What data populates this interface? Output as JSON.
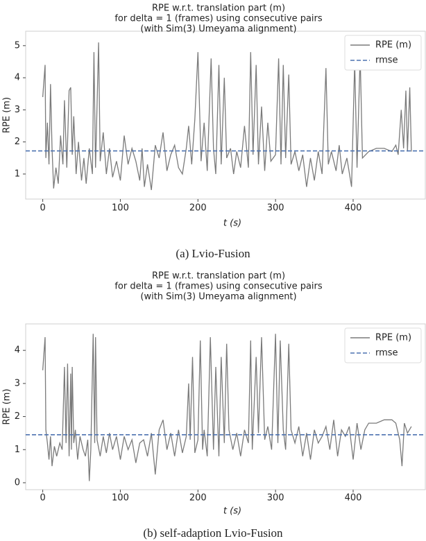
{
  "chart_data": [
    {
      "type": "line",
      "title": [
        "RPE w.r.t. translation part (m)",
        "for delta = 1 (frames) using consecutive pairs",
        "(with Sim(3) Umeyama alignment)"
      ],
      "xlabel": "t (s)",
      "ylabel": "RPE (m)",
      "caption": "(a) Lvio-Fusion",
      "xlim": [
        -22,
        493
      ],
      "ylim": [
        0.22,
        5.45
      ],
      "xticks": [
        0,
        100,
        200,
        300,
        400
      ],
      "yticks": [
        1,
        2,
        3,
        4,
        5
      ],
      "legend": "upper right",
      "series": [
        {
          "name": "RPE (m)",
          "color": "#7a7a7a",
          "dash": false,
          "x": [
            0,
            3,
            4,
            6,
            8,
            10,
            12,
            14,
            17,
            20,
            23,
            26,
            28,
            31,
            34,
            36,
            38,
            40,
            43,
            46,
            50,
            53,
            56,
            60,
            64,
            66,
            68,
            72,
            74,
            78,
            82,
            86,
            90,
            95,
            100,
            105,
            110,
            115,
            120,
            125,
            128,
            131,
            135,
            140,
            145,
            150,
            155,
            160,
            165,
            170,
            175,
            180,
            185,
            188,
            192,
            196,
            200,
            204,
            208,
            212,
            217,
            220,
            223,
            227,
            230,
            234,
            237,
            242,
            246,
            250,
            255,
            260,
            265,
            268,
            271,
            275,
            278,
            282,
            286,
            290,
            294,
            300,
            304,
            307,
            310,
            313,
            317,
            320,
            325,
            330,
            335,
            340,
            345,
            350,
            355,
            360,
            365,
            368,
            372,
            378,
            382,
            386,
            392,
            398,
            402,
            405,
            409,
            412,
            420,
            430,
            440,
            450,
            455,
            458,
            462,
            465,
            468,
            470,
            473,
            475
          ],
          "values": [
            3.4,
            4.4,
            1.5,
            2.6,
            1.3,
            3.8,
            1.8,
            0.55,
            1.2,
            0.7,
            2.2,
            1.3,
            3.3,
            1.2,
            3.6,
            3.7,
            1.6,
            2.8,
            1.0,
            2.0,
            0.8,
            1.5,
            0.7,
            1.8,
            1.0,
            4.8,
            1.2,
            5.1,
            1.4,
            2.3,
            1.0,
            1.8,
            0.9,
            1.4,
            0.8,
            2.2,
            1.3,
            1.8,
            1.4,
            0.8,
            1.8,
            0.6,
            1.3,
            0.5,
            1.9,
            1.5,
            2.3,
            1.1,
            1.6,
            1.9,
            1.2,
            1.0,
            1.8,
            2.5,
            1.3,
            2.7,
            4.8,
            1.4,
            2.6,
            1.1,
            4.6,
            1.8,
            1.0,
            4.4,
            1.3,
            4.0,
            1.5,
            1.8,
            1.0,
            1.7,
            1.2,
            2.5,
            1.2,
            4.8,
            1.6,
            4.4,
            1.3,
            3.1,
            1.1,
            2.6,
            1.4,
            1.6,
            4.6,
            1.3,
            4.4,
            1.5,
            4.1,
            1.3,
            1.7,
            1.1,
            1.6,
            0.6,
            1.5,
            0.8,
            1.7,
            1.0,
            4.3,
            1.3,
            1.7,
            1.1,
            1.9,
            1.0,
            1.5,
            0.6,
            4.5,
            1.2,
            4.7,
            1.5,
            1.7,
            1.8,
            1.8,
            1.7,
            1.9,
            1.6,
            3.0,
            1.8,
            3.6,
            1.7,
            3.7,
            1.7
          ]
        },
        {
          "name": "rmse",
          "color": "#4c72b0",
          "dash": true,
          "x": [
            -22,
            493
          ],
          "values": [
            1.72,
            1.72
          ]
        }
      ]
    },
    {
      "type": "line",
      "title": [
        "RPE w.r.t. translation part (m)",
        "for delta = 1 (frames) using consecutive pairs",
        "(with Sim(3) Umeyama alignment)"
      ],
      "xlabel": "t (s)",
      "ylabel": "RPE (m)",
      "caption": "(b) self-adaption Lvio-Fusion",
      "xlim": [
        -22,
        493
      ],
      "ylim": [
        -0.21,
        4.8
      ],
      "xticks": [
        0,
        100,
        200,
        300,
        400
      ],
      "yticks": [
        0,
        1,
        2,
        3,
        4
      ],
      "legend": "upper right",
      "series": [
        {
          "name": "RPE (m)",
          "color": "#7a7a7a",
          "dash": false,
          "x": [
            0,
            3,
            4,
            6,
            8,
            10,
            12,
            15,
            18,
            22,
            25,
            28,
            30,
            32,
            34,
            36,
            37,
            38,
            40,
            42,
            45,
            48,
            52,
            55,
            58,
            60,
            62,
            65,
            67,
            68,
            70,
            74,
            78,
            82,
            86,
            90,
            95,
            100,
            105,
            110,
            115,
            120,
            125,
            130,
            135,
            140,
            145,
            150,
            155,
            160,
            165,
            170,
            175,
            180,
            185,
            188,
            190,
            193,
            196,
            200,
            203,
            206,
            208,
            212,
            216,
            220,
            223,
            227,
            230,
            234,
            237,
            240,
            245,
            250,
            255,
            260,
            265,
            268,
            270,
            275,
            278,
            282,
            286,
            290,
            295,
            300,
            303,
            306,
            310,
            313,
            317,
            320,
            325,
            330,
            335,
            340,
            345,
            350,
            355,
            360,
            365,
            370,
            375,
            380,
            385,
            390,
            395,
            400,
            405,
            410,
            415,
            420,
            430,
            440,
            450,
            455,
            460,
            463,
            466,
            470,
            475
          ],
          "values": [
            3.4,
            4.4,
            1.6,
            1.2,
            0.7,
            1.4,
            0.5,
            1.1,
            0.8,
            1.2,
            1.0,
            3.5,
            1.2,
            3.6,
            0.8,
            3.3,
            1.0,
            3.5,
            1.2,
            1.6,
            0.7,
            1.4,
            1.0,
            0.8,
            1.3,
            0.05,
            1.0,
            4.5,
            1.2,
            4.4,
            1.3,
            0.8,
            1.4,
            0.9,
            1.5,
            1.0,
            1.4,
            0.7,
            1.4,
            1.0,
            1.3,
            0.6,
            1.2,
            1.3,
            0.8,
            1.5,
            0.25,
            1.6,
            1.9,
            1.0,
            1.5,
            0.8,
            1.6,
            0.9,
            1.4,
            3.0,
            1.3,
            3.8,
            0.9,
            1.3,
            4.3,
            1.0,
            1.6,
            0.8,
            4.4,
            1.0,
            3.5,
            0.8,
            3.8,
            1.2,
            4.2,
            1.6,
            1.0,
            1.5,
            0.8,
            1.6,
            1.2,
            4.3,
            1.0,
            3.8,
            1.5,
            4.4,
            1.3,
            1.7,
            1.0,
            4.5,
            1.2,
            4.3,
            1.6,
            1.0,
            4.2,
            1.6,
            1.2,
            1.7,
            0.8,
            1.5,
            0.7,
            1.6,
            1.2,
            1.4,
            1.7,
            1.0,
            1.9,
            0.8,
            1.6,
            1.4,
            1.7,
            0.7,
            1.8,
            1.0,
            1.6,
            1.8,
            1.8,
            1.9,
            1.9,
            1.8,
            1.3,
            0.5,
            1.8,
            1.5,
            1.7
          ]
        },
        {
          "name": "rmse",
          "color": "#4c72b0",
          "dash": true,
          "x": [
            -22,
            493
          ],
          "values": [
            1.45,
            1.45
          ]
        }
      ]
    }
  ]
}
